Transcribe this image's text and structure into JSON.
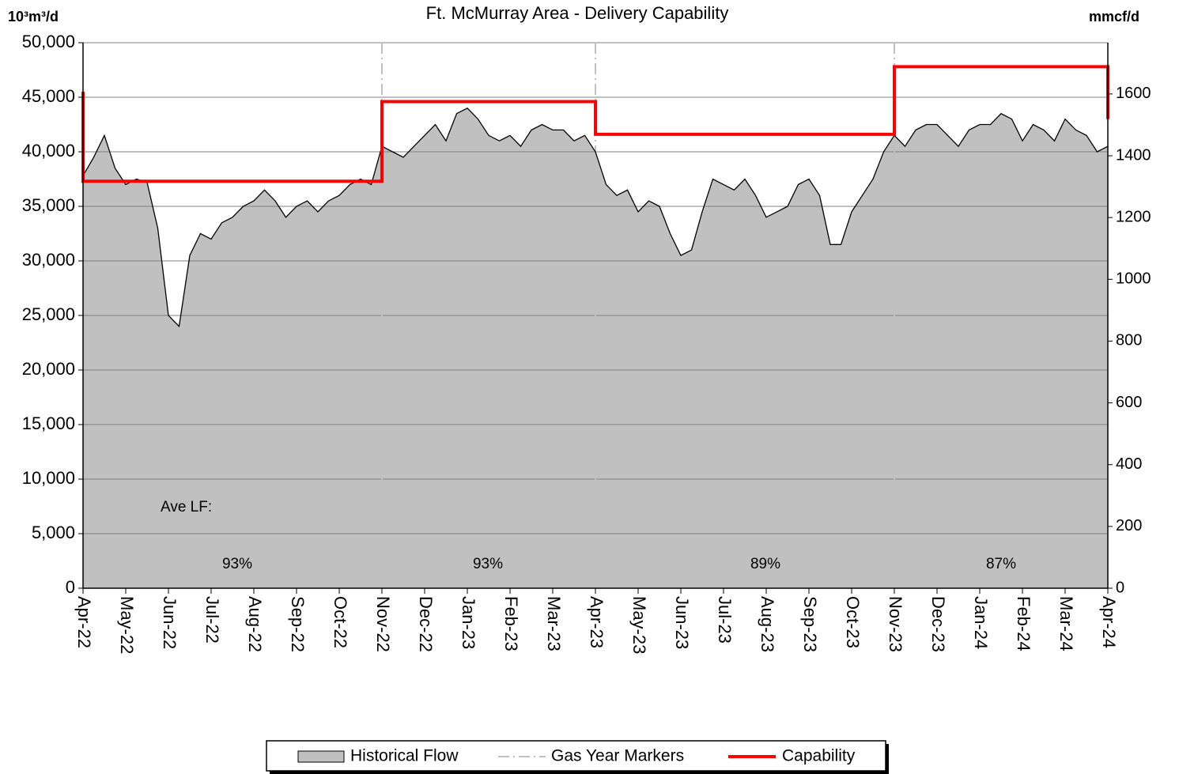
{
  "chart_data": {
    "type": "area",
    "title": "Ft. McMurray Area - Delivery Capability",
    "ylabel": "10³m³/d",
    "y2label": "mmcf/d",
    "xlim": [
      0,
      24
    ],
    "xticks": [
      {
        "value": 0,
        "label": "Apr-22"
      },
      {
        "value": 1,
        "label": "May-22"
      },
      {
        "value": 2,
        "label": "Jun-22"
      },
      {
        "value": 3,
        "label": "Jul-22"
      },
      {
        "value": 4,
        "label": "Aug-22"
      },
      {
        "value": 5,
        "label": "Sep-22"
      },
      {
        "value": 6,
        "label": "Oct-22"
      },
      {
        "value": 7,
        "label": "Nov-22"
      },
      {
        "value": 8,
        "label": "Dec-22"
      },
      {
        "value": 9,
        "label": "Jan-23"
      },
      {
        "value": 10,
        "label": "Feb-23"
      },
      {
        "value": 11,
        "label": "Mar-23"
      },
      {
        "value": 12,
        "label": "Apr-23"
      },
      {
        "value": 13,
        "label": "May-23"
      },
      {
        "value": 14,
        "label": "Jun-23"
      },
      {
        "value": 15,
        "label": "Jul-23"
      },
      {
        "value": 16,
        "label": "Aug-23"
      },
      {
        "value": 17,
        "label": "Sep-23"
      },
      {
        "value": 18,
        "label": "Oct-23"
      },
      {
        "value": 19,
        "label": "Nov-23"
      },
      {
        "value": 20,
        "label": "Dec-23"
      },
      {
        "value": 21,
        "label": "Jan-24"
      },
      {
        "value": 22,
        "label": "Feb-24"
      },
      {
        "value": 23,
        "label": "Mar-24"
      },
      {
        "value": 24,
        "label": "Apr-24"
      }
    ],
    "ylim": [
      0,
      50000
    ],
    "yticks": [
      0,
      {
        "value": 5000,
        "label": "5,000"
      },
      {
        "value": 10000,
        "label": "10,000"
      },
      {
        "value": 15000,
        "label": "15,000"
      },
      {
        "value": 20000,
        "label": "20,000"
      },
      {
        "value": 25000,
        "label": "25,000"
      },
      {
        "value": 30000,
        "label": "30,000"
      },
      {
        "value": 35000,
        "label": "35,000"
      },
      {
        "value": 40000,
        "label": "40,000"
      },
      {
        "value": 45000,
        "label": "45,000"
      },
      {
        "value": 50000,
        "label": "50,000"
      }
    ],
    "y2lim": [
      0,
      1766
    ],
    "y2ticks": [
      0,
      200,
      400,
      600,
      800,
      1000,
      1200,
      1400,
      1600
    ],
    "grid": true,
    "series": [
      {
        "name": "Historical Flow",
        "color": "#c0c0c0",
        "x": [
          0,
          0.25,
          0.5,
          0.75,
          1,
          1.25,
          1.5,
          1.75,
          2,
          2.25,
          2.5,
          2.75,
          3,
          3.25,
          3.5,
          3.75,
          4,
          4.25,
          4.5,
          4.75,
          5,
          5.25,
          5.5,
          5.75,
          6,
          6.25,
          6.5,
          6.75,
          7,
          7.25,
          7.5,
          7.75,
          8,
          8.25,
          8.5,
          8.75,
          9,
          9.25,
          9.5,
          9.75,
          10,
          10.25,
          10.5,
          10.75,
          11,
          11.25,
          11.5,
          11.75,
          12,
          12.25,
          12.5,
          12.75,
          13,
          13.25,
          13.5,
          13.75,
          14,
          14.25,
          14.5,
          14.75,
          15,
          15.25,
          15.5,
          15.75,
          16,
          16.25,
          16.5,
          16.75,
          17,
          17.25,
          17.5,
          17.75,
          18,
          18.25,
          18.5,
          18.75,
          19,
          19.25,
          19.5,
          19.75,
          20,
          20.25,
          20.5,
          20.75,
          21,
          21.25,
          21.5,
          21.75,
          22,
          22.25,
          22.5,
          22.75,
          23,
          23.25,
          23.5,
          23.75,
          24
        ],
        "values": [
          37800,
          39500,
          41500,
          38500,
          37000,
          37500,
          37200,
          33000,
          25000,
          24000,
          30500,
          32500,
          32000,
          33500,
          34000,
          35000,
          35500,
          36500,
          35500,
          34000,
          35000,
          35500,
          34500,
          35500,
          36000,
          37000,
          37500,
          37000,
          40500,
          40000,
          39500,
          40500,
          41500,
          42500,
          41000,
          43500,
          44000,
          43000,
          41500,
          41000,
          41500,
          40500,
          42000,
          42500,
          42000,
          42000,
          41000,
          41500,
          40000,
          37000,
          36000,
          36500,
          34500,
          35500,
          35000,
          32500,
          30500,
          31000,
          34500,
          37500,
          37000,
          36500,
          37500,
          36000,
          34000,
          34500,
          35000,
          37000,
          37500,
          36000,
          31500,
          31500,
          34500,
          36000,
          37500,
          40000,
          41500,
          40500,
          42000,
          42500,
          42500,
          41500,
          40500,
          42000,
          42500,
          42500,
          43500,
          43000,
          41000,
          42500,
          42000,
          41000,
          43000,
          42000,
          41500,
          40000,
          40500
        ]
      },
      {
        "name": "Capability",
        "color": "#ff0000",
        "x": [
          0,
          0,
          7,
          7,
          12,
          12,
          19,
          19,
          24,
          24
        ],
        "values": [
          45500,
          37300,
          37300,
          44600,
          44600,
          41600,
          41600,
          47800,
          47800,
          43000
        ]
      }
    ],
    "markers": {
      "name": "Gas Year Markers",
      "color": "#c0c0c0",
      "x": [
        7,
        12,
        19
      ]
    },
    "annotations": [
      "Ave LF:",
      "93%",
      "93%",
      "89%",
      "87%"
    ]
  }
}
